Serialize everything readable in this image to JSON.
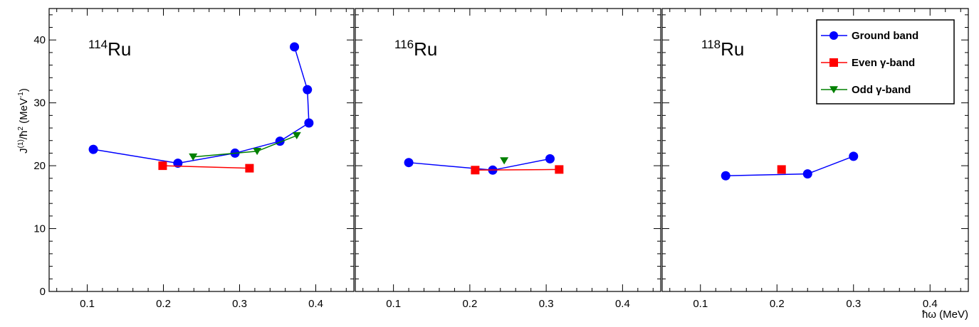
{
  "chart_data": {
    "type": "scatter",
    "ylabel": "J(1)/ħ² (MeV-1)",
    "ylabel_parts": {
      "base": "J",
      "sup1": "(1)",
      "mid": "/ħ",
      "sup2": "2",
      "unit": " (MeV",
      "sup3": "-1",
      "close": ")"
    },
    "xlabel": "ħω (MeV)",
    "xlim": [
      0.05,
      0.45
    ],
    "ylim": [
      0,
      45
    ],
    "x_ticks": [
      0.1,
      0.2,
      0.3,
      0.4
    ],
    "x_tick_labels": [
      "0.1",
      "0.2",
      "0.3",
      "0.4"
    ],
    "y_ticks": [
      0,
      10,
      20,
      30,
      40
    ],
    "y_tick_labels": [
      "0",
      "10",
      "20",
      "30",
      "40"
    ],
    "legend": {
      "placement": "top-right",
      "entries": [
        {
          "label": "Ground band",
          "color": "#0000ff",
          "marker": "circle"
        },
        {
          "label": "Even γ-band",
          "color": "#ff0000",
          "marker": "square"
        },
        {
          "label": "Odd γ-band",
          "color": "#008000",
          "marker": "triangle-down"
        }
      ]
    },
    "panels": [
      {
        "label_mass": "114",
        "label_element": "Ru",
        "series": [
          {
            "name": "Ground band",
            "color": "#0000ff",
            "marker": "circle",
            "x": [
              0.108,
              0.219,
              0.294,
              0.353,
              0.391,
              0.389,
              0.372
            ],
            "y": [
              22.6,
              20.4,
              22.0,
              23.9,
              26.8,
              32.1,
              38.9
            ]
          },
          {
            "name": "Even γ-band",
            "color": "#ff0000",
            "marker": "square",
            "x": [
              0.199,
              0.313
            ],
            "y": [
              20.0,
              19.6
            ]
          },
          {
            "name": "Odd γ-band",
            "color": "#008000",
            "marker": "triangle-down",
            "x": [
              0.239,
              0.323,
              0.375
            ],
            "y": [
              21.4,
              22.3,
              24.8
            ]
          }
        ]
      },
      {
        "label_mass": "116",
        "label_element": "Ru",
        "series": [
          {
            "name": "Ground band",
            "color": "#0000ff",
            "marker": "circle",
            "x": [
              0.12,
              0.23,
              0.305
            ],
            "y": [
              20.5,
              19.3,
              21.1
            ]
          },
          {
            "name": "Even γ-band",
            "color": "#ff0000",
            "marker": "square",
            "x": [
              0.207,
              0.317
            ],
            "y": [
              19.3,
              19.4
            ]
          },
          {
            "name": "Odd γ-band",
            "color": "#008000",
            "marker": "triangle-down",
            "x": [
              0.245
            ],
            "y": [
              20.8
            ]
          }
        ]
      },
      {
        "label_mass": "118",
        "label_element": "Ru",
        "series": [
          {
            "name": "Ground band",
            "color": "#0000ff",
            "marker": "circle",
            "x": [
              0.133,
              0.24,
              0.3
            ],
            "y": [
              18.4,
              18.7,
              21.5
            ]
          },
          {
            "name": "Even γ-band",
            "color": "#ff0000",
            "marker": "square",
            "x": [
              0.206
            ],
            "y": [
              19.4
            ]
          }
        ]
      }
    ]
  }
}
